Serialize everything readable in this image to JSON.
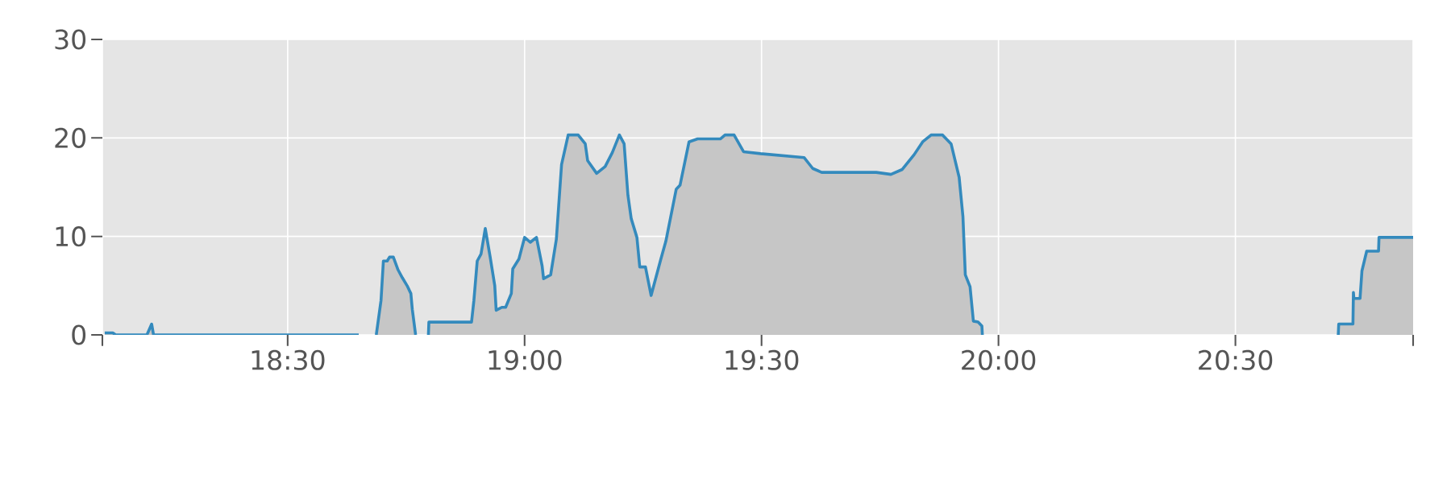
{
  "chart_data": {
    "type": "area",
    "xlim": [
      18.109,
      20.875
    ],
    "ylim": [
      0,
      30
    ],
    "yticks": [
      0,
      10,
      20,
      30
    ],
    "xticks": [
      {
        "value": 18.109,
        "label": null
      },
      {
        "value": 18.5,
        "label": "18:30"
      },
      {
        "value": 19.0,
        "label": "19:00"
      },
      {
        "value": 19.5,
        "label": "19:30"
      },
      {
        "value": 20.0,
        "label": "20:00"
      },
      {
        "value": 20.5,
        "label": "20:30"
      },
      {
        "value": 20.875,
        "label": null
      }
    ],
    "grid": true,
    "series": [
      {
        "color": "#348abd",
        "x": [
          18.114,
          18.131,
          18.137,
          18.203,
          18.213,
          18.217,
          18.65,
          18.66,
          18.687,
          18.697,
          18.702,
          18.71,
          18.715,
          18.723,
          18.733,
          18.742,
          18.752,
          18.76,
          18.763,
          18.77,
          18.78,
          18.797,
          18.798,
          18.888,
          18.893,
          18.9,
          18.908,
          18.917,
          18.927,
          18.937,
          18.94,
          18.952,
          18.96,
          18.972,
          18.975,
          18.988,
          19.0,
          19.012,
          19.025,
          19.037,
          19.04,
          19.055,
          19.067,
          19.078,
          19.092,
          19.113,
          19.128,
          19.133,
          19.152,
          19.17,
          19.185,
          19.2,
          19.21,
          19.218,
          19.225,
          19.237,
          19.243,
          19.255,
          19.267,
          19.287,
          19.298,
          19.32,
          19.328,
          19.347,
          19.365,
          19.413,
          19.423,
          19.442,
          19.462,
          19.498,
          19.59,
          19.608,
          19.627,
          19.742,
          19.773,
          19.797,
          19.822,
          19.84,
          19.858,
          19.882,
          19.9,
          19.917,
          19.925,
          19.93,
          19.94,
          19.947,
          19.957,
          19.965,
          19.966,
          19.97,
          20.717,
          20.718,
          20.748,
          20.749,
          20.75,
          20.763,
          20.767,
          20.777,
          20.802,
          20.803,
          20.875
        ],
        "values": [
          0.2,
          0.2,
          0,
          0,
          1.1,
          0,
          0,
          null,
          0,
          3.5,
          7.5,
          7.5,
          7.9,
          7.9,
          6.6,
          5.8,
          5.0,
          4.2,
          2.6,
          0,
          null,
          0,
          1.3,
          1.3,
          3.5,
          7.5,
          8.2,
          10.8,
          8,
          5,
          2.5,
          2.8,
          2.8,
          4.2,
          6.7,
          7.7,
          9.9,
          9.4,
          9.9,
          7,
          5.7,
          6.1,
          9.7,
          17.3,
          20.3,
          20.3,
          19.4,
          17.7,
          16.4,
          17.1,
          18.5,
          20.3,
          19.4,
          14.2,
          11.8,
          9.9,
          6.9,
          6.9,
          4.0,
          7.6,
          9.5,
          14.8,
          15.2,
          19.6,
          19.9,
          19.9,
          20.3,
          20.3,
          18.6,
          18.4,
          18.0,
          16.9,
          16.5,
          16.5,
          16.3,
          16.8,
          18.3,
          19.6,
          20.3,
          20.3,
          19.4,
          16,
          12,
          6.1,
          4.9,
          1.4,
          1.3,
          0.9,
          0,
          null,
          0,
          1.1,
          1.1,
          4.3,
          3.7,
          3.7,
          6.5,
          8.5,
          8.5,
          9.9,
          9.9
        ]
      }
    ]
  }
}
